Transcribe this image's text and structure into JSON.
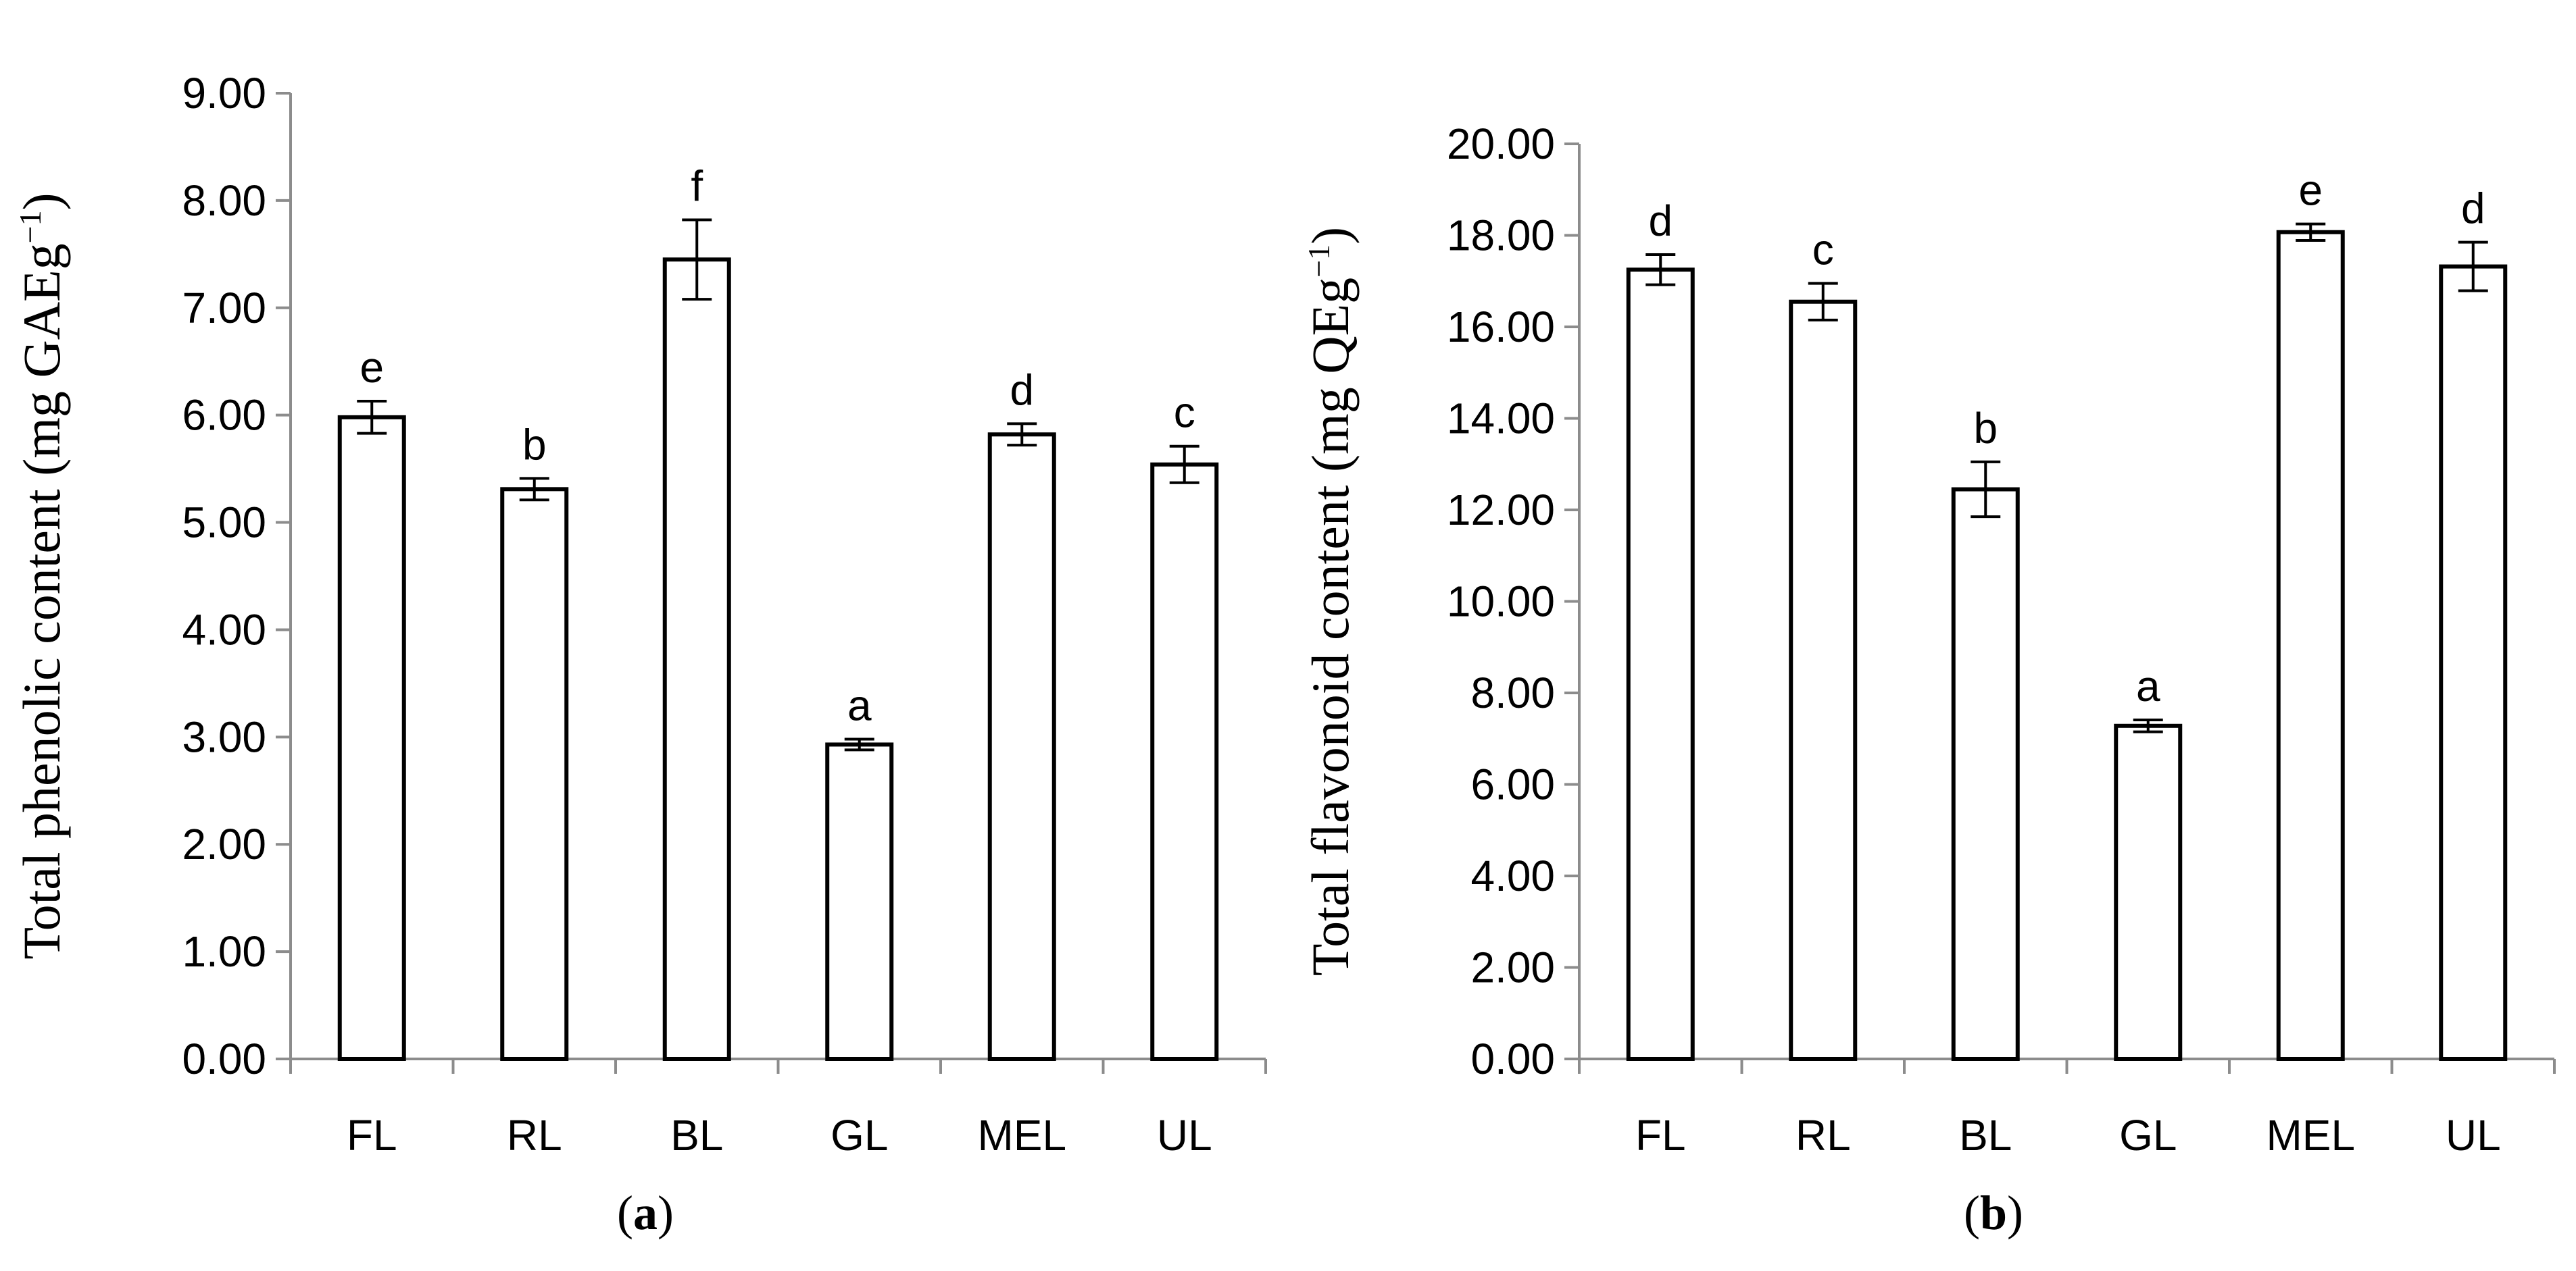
{
  "chart_data": [
    {
      "type": "bar",
      "panel": "a",
      "panel_label": {
        "open": "(",
        "letter": "a",
        "close": ")"
      },
      "ylabel": {
        "text": "Total phenolic content (mg GAEg",
        "sup": "−1",
        "close": ")"
      },
      "categories": [
        "FL",
        "RL",
        "BL",
        "GL",
        "MEL",
        "UL"
      ],
      "values": [
        5.98,
        5.31,
        7.45,
        2.93,
        5.82,
        5.54
      ],
      "errors": [
        0.15,
        0.1,
        0.37,
        0.05,
        0.1,
        0.17
      ],
      "significance": [
        "e",
        "b",
        "f",
        "a",
        "d",
        "c"
      ],
      "ylim": [
        0,
        9
      ],
      "yticks": [
        0,
        1,
        2,
        3,
        4,
        5,
        6,
        7,
        8,
        9
      ],
      "ytick_labels": [
        "0.00",
        "1.00",
        "2.00",
        "3.00",
        "4.00",
        "5.00",
        "6.00",
        "7.00",
        "8.00",
        "9.00"
      ]
    },
    {
      "type": "bar",
      "panel": "b",
      "panel_label": {
        "open": "(",
        "letter": "b",
        "close": ")"
      },
      "ylabel": {
        "text": "Total flavonoid content (mg QEg",
        "sup": "−1",
        "close": ")"
      },
      "categories": [
        "FL",
        "RL",
        "BL",
        "GL",
        "MEL",
        "UL"
      ],
      "values": [
        17.25,
        16.55,
        12.45,
        7.28,
        18.07,
        17.32
      ],
      "errors": [
        0.33,
        0.4,
        0.6,
        0.13,
        0.18,
        0.53
      ],
      "significance": [
        "d",
        "c",
        "b",
        "a",
        "e",
        "d"
      ],
      "ylim": [
        0,
        20
      ],
      "yticks": [
        0,
        2,
        4,
        6,
        8,
        10,
        12,
        14,
        16,
        18,
        20
      ],
      "ytick_labels": [
        "0.00",
        "2.00",
        "4.00",
        "6.00",
        "8.00",
        "10.00",
        "12.00",
        "14.00",
        "16.00",
        "18.00",
        "20.00"
      ]
    }
  ]
}
